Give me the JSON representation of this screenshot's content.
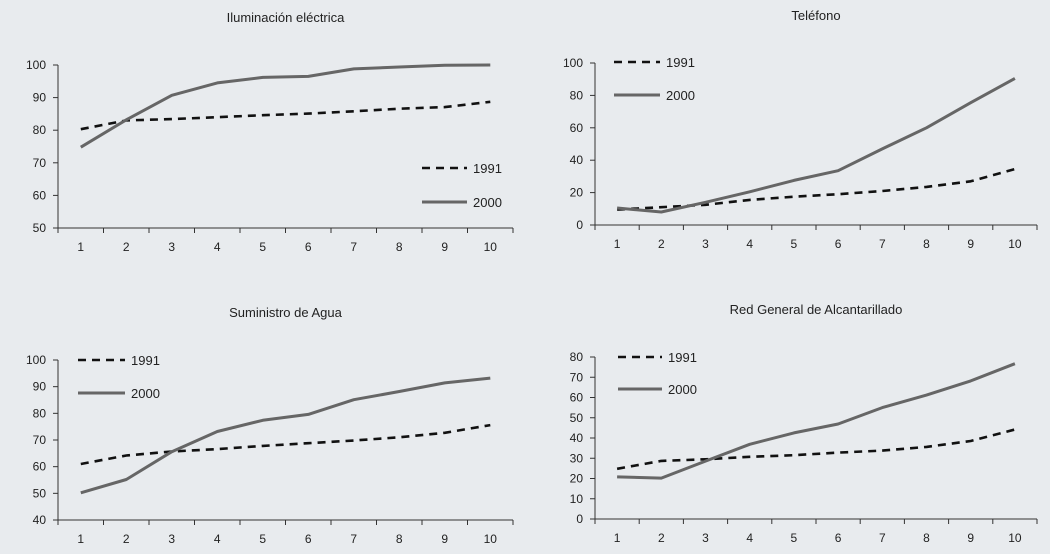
{
  "chart_data": [
    {
      "type": "line",
      "title": "Iluminación eléctrica",
      "x": [
        1,
        2,
        3,
        4,
        5,
        6,
        7,
        8,
        9,
        10
      ],
      "ylim": [
        50,
        100
      ],
      "yticks": [
        50,
        60,
        70,
        80,
        90,
        100
      ],
      "legend": "right",
      "series": [
        {
          "name": "1991",
          "style": "dashed",
          "color": "#111111",
          "values": [
            80.3,
            83,
            83.4,
            84,
            84.6,
            85.1,
            85.8,
            86.6,
            87.1,
            88.7
          ]
        },
        {
          "name": "2000",
          "style": "solid",
          "color": "#666666",
          "values": [
            74.8,
            83.2,
            90.7,
            94.5,
            96.2,
            96.5,
            98.8,
            99.4,
            99.9,
            100
          ]
        }
      ]
    },
    {
      "type": "line",
      "title": "Teléfono",
      "x": [
        1,
        2,
        3,
        4,
        5,
        6,
        7,
        8,
        9,
        10
      ],
      "ylim": [
        0,
        100
      ],
      "yticks": [
        0,
        20,
        40,
        60,
        80,
        100
      ],
      "legend": "top-left",
      "series": [
        {
          "name": "1991",
          "style": "dashed",
          "color": "#111111",
          "values": [
            9.5,
            11,
            12.5,
            15.5,
            17.5,
            19,
            21,
            23.5,
            27,
            34.5
          ]
        },
        {
          "name": "2000",
          "style": "solid",
          "color": "#666666",
          "values": [
            10.5,
            8,
            14,
            20.5,
            27.5,
            33.5,
            47,
            60,
            75.5,
            90.5
          ]
        }
      ]
    },
    {
      "type": "line",
      "title": "Suministro de Agua",
      "x": [
        1,
        2,
        3,
        4,
        5,
        6,
        7,
        8,
        9,
        10
      ],
      "ylim": [
        40,
        100
      ],
      "yticks": [
        40,
        50,
        60,
        70,
        80,
        90,
        100
      ],
      "legend": "top-left",
      "series": [
        {
          "name": "1991",
          "style": "dashed",
          "color": "#111111",
          "values": [
            61,
            64.2,
            65.7,
            66.6,
            67.8,
            68.8,
            69.8,
            71,
            72.7,
            75.6
          ]
        },
        {
          "name": "2000",
          "style": "solid",
          "color": "#666666",
          "values": [
            50.2,
            55.2,
            65.6,
            73.2,
            77.4,
            79.6,
            85.1,
            88.2,
            91.4,
            93.2
          ]
        }
      ]
    },
    {
      "type": "line",
      "title": "Red General de Alcantarillado",
      "x": [
        1,
        2,
        3,
        4,
        5,
        6,
        7,
        8,
        9,
        10
      ],
      "ylim": [
        0,
        80
      ],
      "yticks": [
        0,
        10,
        20,
        30,
        40,
        50,
        60,
        70,
        80
      ],
      "legend": "top-left",
      "series": [
        {
          "name": "1991",
          "style": "dashed",
          "color": "#111111",
          "values": [
            24.8,
            28.7,
            29.5,
            30.7,
            31.5,
            32.8,
            33.8,
            35.6,
            38.5,
            44.2
          ]
        },
        {
          "name": "2000",
          "style": "solid",
          "color": "#666666",
          "values": [
            20.8,
            20.2,
            28.6,
            36.9,
            42.5,
            46.9,
            55,
            61.2,
            68.2,
            76.7
          ]
        }
      ]
    }
  ]
}
